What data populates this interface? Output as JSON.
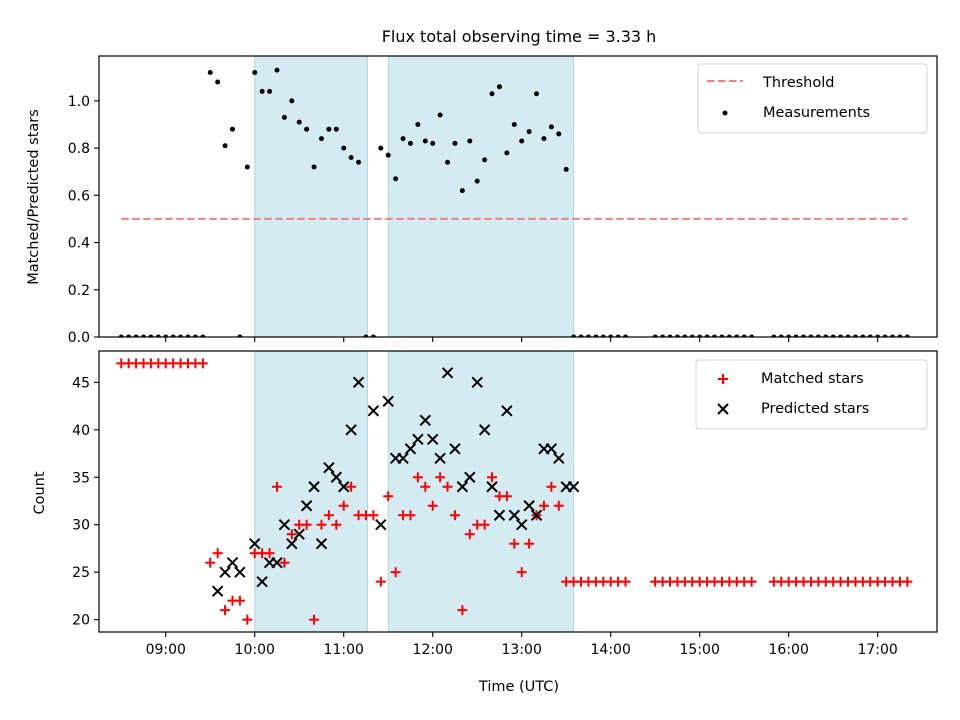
{
  "figure": {
    "title": "Flux total observing time = 3.33 h"
  },
  "colors": {
    "threshold": "#f08080",
    "measurement": "#000000",
    "matched": "#ff0000",
    "predicted": "#000000",
    "shade": "#add8e6"
  },
  "chart_data": [
    {
      "type": "scatter",
      "panel": "top",
      "ylabel": "Matched/Predicted stars",
      "ylim": [
        0,
        1.19
      ],
      "yticks": [
        "0.0",
        "0.2",
        "0.4",
        "0.6",
        "0.8",
        "1.0"
      ],
      "grid": false,
      "legend": {
        "placement": "top-right",
        "entries": [
          "Threshold",
          "Measurements"
        ]
      },
      "shaded_intervals": [
        [
          "10:00",
          "11:16"
        ],
        [
          "11:30",
          "13:35"
        ]
      ],
      "series": [
        {
          "name": "Threshold",
          "kind": "dashed-line",
          "x": [
            "08:30",
            "17:20"
          ],
          "y": [
            0.5,
            0.5
          ]
        },
        {
          "name": "Measurements",
          "kind": "points",
          "x": [
            "08:30",
            "08:35",
            "08:40",
            "08:45",
            "08:50",
            "08:55",
            "09:00",
            "09:05",
            "09:10",
            "09:15",
            "09:20",
            "09:25",
            "09:30",
            "09:35",
            "09:40",
            "09:45",
            "09:50",
            "09:55",
            "10:00",
            "10:05",
            "10:10",
            "10:15",
            "10:20",
            "10:25",
            "10:30",
            "10:35",
            "10:40",
            "10:45",
            "10:50",
            "10:55",
            "11:00",
            "11:05",
            "11:10",
            "11:15",
            "11:20",
            "11:25",
            "11:30",
            "11:35",
            "11:40",
            "11:45",
            "11:50",
            "11:55",
            "12:00",
            "12:05",
            "12:10",
            "12:15",
            "12:20",
            "12:25",
            "12:30",
            "12:35",
            "12:40",
            "12:45",
            "12:50",
            "12:55",
            "13:00",
            "13:05",
            "13:10",
            "13:15",
            "13:20",
            "13:25",
            "13:30",
            "13:35",
            "13:40",
            "13:45",
            "13:50",
            "13:55",
            "14:00",
            "14:05",
            "14:10",
            "14:30",
            "14:35",
            "14:40",
            "14:45",
            "14:50",
            "14:55",
            "15:00",
            "15:05",
            "15:10",
            "15:15",
            "15:20",
            "15:25",
            "15:30",
            "15:35",
            "15:50",
            "15:55",
            "16:00",
            "16:05",
            "16:10",
            "16:15",
            "16:20",
            "16:25",
            "16:30",
            "16:35",
            "16:40",
            "16:45",
            "16:50",
            "16:55",
            "17:00",
            "17:05",
            "17:10",
            "17:15",
            "17:20"
          ],
          "y": [
            0,
            0,
            0,
            0,
            0,
            0,
            0,
            0,
            0,
            0,
            0,
            0,
            1.12,
            1.08,
            0.81,
            0.88,
            0,
            0.72,
            1.12,
            1.04,
            1.04,
            1.13,
            0.93,
            1.0,
            0.91,
            0.88,
            0.72,
            0.84,
            0.88,
            0.88,
            0.8,
            0.76,
            0.74,
            0,
            0,
            0.8,
            0.77,
            0.67,
            0.84,
            0.82,
            0.9,
            0.83,
            0.82,
            0.94,
            0.74,
            0.82,
            0.62,
            0.83,
            0.66,
            0.75,
            1.03,
            1.06,
            0.78,
            0.9,
            0.83,
            0.87,
            1.03,
            0.84,
            0.89,
            0.86,
            0.71,
            0,
            0,
            0,
            0,
            0,
            0,
            0,
            0,
            0,
            0,
            0,
            0,
            0,
            0,
            0,
            0,
            0,
            0,
            0,
            0,
            0,
            0,
            0,
            0,
            0,
            0,
            0,
            0,
            0,
            0,
            0,
            0,
            0,
            0,
            0,
            0,
            0,
            0,
            0,
            0,
            0
          ]
        }
      ]
    },
    {
      "type": "scatter",
      "panel": "bottom",
      "title": "",
      "xlabel": "Time (UTC)",
      "ylabel": "Count",
      "xlim": [
        "08:15",
        "17:40"
      ],
      "xticks": [
        "09:00",
        "10:00",
        "11:00",
        "12:00",
        "13:00",
        "14:00",
        "15:00",
        "16:00",
        "17:00"
      ],
      "ylim": [
        18.7,
        48.3
      ],
      "yticks": [
        "20",
        "25",
        "30",
        "35",
        "40",
        "45"
      ],
      "grid": false,
      "legend": {
        "placement": "top-right",
        "entries": [
          "Matched stars",
          "Predicted stars"
        ]
      },
      "shaded_intervals": [
        [
          "10:00",
          "11:16"
        ],
        [
          "11:30",
          "13:35"
        ]
      ],
      "series": [
        {
          "name": "Matched stars",
          "marker": "plus",
          "x": [
            "08:30",
            "08:35",
            "08:40",
            "08:45",
            "08:50",
            "08:55",
            "09:00",
            "09:05",
            "09:10",
            "09:15",
            "09:20",
            "09:25",
            "09:30",
            "09:35",
            "09:40",
            "09:45",
            "09:50",
            "09:55",
            "10:00",
            "10:05",
            "10:10",
            "10:15",
            "10:20",
            "10:25",
            "10:30",
            "10:35",
            "10:40",
            "10:45",
            "10:50",
            "10:55",
            "11:00",
            "11:05",
            "11:10",
            "11:15",
            "11:20",
            "11:25",
            "11:30",
            "11:35",
            "11:40",
            "11:45",
            "11:50",
            "11:55",
            "12:00",
            "12:05",
            "12:10",
            "12:15",
            "12:20",
            "12:25",
            "12:30",
            "12:35",
            "12:40",
            "12:45",
            "12:50",
            "12:55",
            "13:00",
            "13:05",
            "13:10",
            "13:15",
            "13:20",
            "13:25",
            "13:30",
            "13:35",
            "13:40",
            "13:45",
            "13:50",
            "13:55",
            "14:00",
            "14:05",
            "14:10",
            "14:30",
            "14:35",
            "14:40",
            "14:45",
            "14:50",
            "14:55",
            "15:00",
            "15:05",
            "15:10",
            "15:15",
            "15:20",
            "15:25",
            "15:30",
            "15:35",
            "15:50",
            "15:55",
            "16:00",
            "16:05",
            "16:10",
            "16:15",
            "16:20",
            "16:25",
            "16:30",
            "16:35",
            "16:40",
            "16:45",
            "16:50",
            "16:55",
            "17:00",
            "17:05",
            "17:10",
            "17:15",
            "17:20"
          ],
          "y": [
            47,
            47,
            47,
            47,
            47,
            47,
            47,
            47,
            47,
            47,
            47,
            47,
            26,
            27,
            21,
            22,
            22,
            20,
            27,
            27,
            27,
            34,
            26,
            29,
            30,
            30,
            20,
            30,
            31,
            30,
            32,
            34,
            31,
            31,
            31,
            24,
            33,
            25,
            31,
            31,
            35,
            34,
            32,
            35,
            34,
            31,
            21,
            29,
            30,
            30,
            35,
            33,
            33,
            28,
            25,
            28,
            31,
            32,
            34,
            32,
            24,
            24,
            24,
            24,
            24,
            24,
            24,
            24,
            24,
            24,
            24,
            24,
            24,
            24,
            24,
            24,
            24,
            24,
            24,
            24,
            24,
            24,
            24,
            24,
            24,
            24,
            24,
            24,
            24,
            24,
            24,
            24,
            24,
            24,
            24,
            24,
            24,
            24,
            24,
            24,
            24,
            24
          ]
        },
        {
          "name": "Predicted stars",
          "marker": "x",
          "x": [
            "09:35",
            "09:40",
            "09:45",
            "09:50",
            "10:00",
            "10:05",
            "10:10",
            "10:15",
            "10:20",
            "10:25",
            "10:30",
            "10:35",
            "10:40",
            "10:45",
            "10:50",
            "10:55",
            "11:00",
            "11:05",
            "11:10",
            "11:20",
            "11:25",
            "11:30",
            "11:35",
            "11:40",
            "11:45",
            "11:50",
            "11:55",
            "12:00",
            "12:05",
            "12:10",
            "12:15",
            "12:20",
            "12:25",
            "12:30",
            "12:35",
            "12:40",
            "12:45",
            "12:50",
            "12:55",
            "13:00",
            "13:05",
            "13:10",
            "13:15",
            "13:20",
            "13:25",
            "13:30",
            "13:35"
          ],
          "y": [
            23,
            25,
            26,
            25,
            28,
            24,
            26,
            26,
            30,
            28,
            29,
            32,
            34,
            28,
            36,
            35,
            34,
            40,
            45,
            42,
            30,
            43,
            37,
            37,
            38,
            39,
            41,
            39,
            37,
            46,
            38,
            34,
            35,
            45,
            40,
            34,
            31,
            42,
            31,
            30,
            32,
            31,
            38,
            38,
            37,
            34,
            34
          ]
        }
      ]
    }
  ]
}
